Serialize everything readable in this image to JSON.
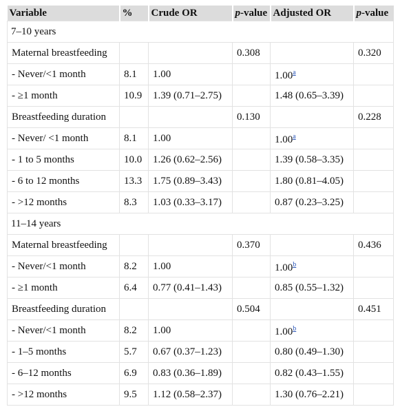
{
  "table": {
    "header": [
      "Variable",
      "%",
      "Crude OR",
      {
        "italic": "p",
        "text": "-value"
      },
      "Adjusted OR",
      {
        "italic": "p",
        "text": "-value"
      }
    ],
    "rows": [
      {
        "section": "7–10 years"
      },
      [
        "Maternal breastfeeding",
        null,
        null,
        "0.308",
        null,
        "0.320"
      ],
      [
        "- Never/<1 month",
        "8.1",
        "1.00",
        null,
        {
          "text": "1.00",
          "sup": "a"
        },
        null
      ],
      [
        "- ≥1 month",
        "10.9",
        "1.39 (0.71–2.75)",
        null,
        "1.48 (0.65–3.39)",
        null
      ],
      [
        "Breastfeeding duration",
        null,
        null,
        "0.130",
        null,
        "0.228"
      ],
      [
        "- Never/ <1 month",
        "8.1",
        "1.00",
        null,
        {
          "text": "1.00",
          "sup": "a"
        },
        null
      ],
      [
        "- 1 to 5 months",
        "10.0",
        "1.26 (0.62–2.56)",
        null,
        "1.39 (0.58–3.35)",
        null
      ],
      [
        "- 6 to 12 months",
        "13.3",
        "1.75 (0.89–3.43)",
        null,
        "1.80 (0.81–4.05)",
        null
      ],
      [
        "- >12 months",
        "8.3",
        "1.03 (0.33–3.17)",
        null,
        "0.87 (0.23–3.25)",
        null
      ],
      {
        "section": "11–14 years"
      },
      [
        "Maternal breastfeeding",
        null,
        null,
        "0.370",
        null,
        "0.436"
      ],
      [
        "- Never/<1 month",
        "8.2",
        "1.00",
        null,
        {
          "text": "1.00",
          "sup": "b"
        },
        null
      ],
      [
        "- ≥1 month",
        "6.4",
        "0.77 (0.41–1.43)",
        null,
        "0.85 (0.55–1.32)",
        null
      ],
      [
        "Breastfeeding duration",
        null,
        null,
        "0.504",
        null,
        "0.451"
      ],
      [
        "- Never/<1 month",
        "8.2",
        "1.00",
        null,
        {
          "text": "1.00",
          "sup": "b"
        },
        null
      ],
      [
        "- 1–5 months",
        "5.7",
        "0.67 (0.37–1.23)",
        null,
        "0.80 (0.49–1.30)",
        null
      ],
      [
        "- 6–12 months",
        "6.9",
        "0.83 (0.36–1.89)",
        null,
        "0.82 (0.43–1.55)",
        null
      ],
      [
        "- >12 months",
        "9.5",
        "1.12 (0.58–2.37)",
        null,
        "1.30 (0.76–2.21)",
        null
      ]
    ]
  }
}
